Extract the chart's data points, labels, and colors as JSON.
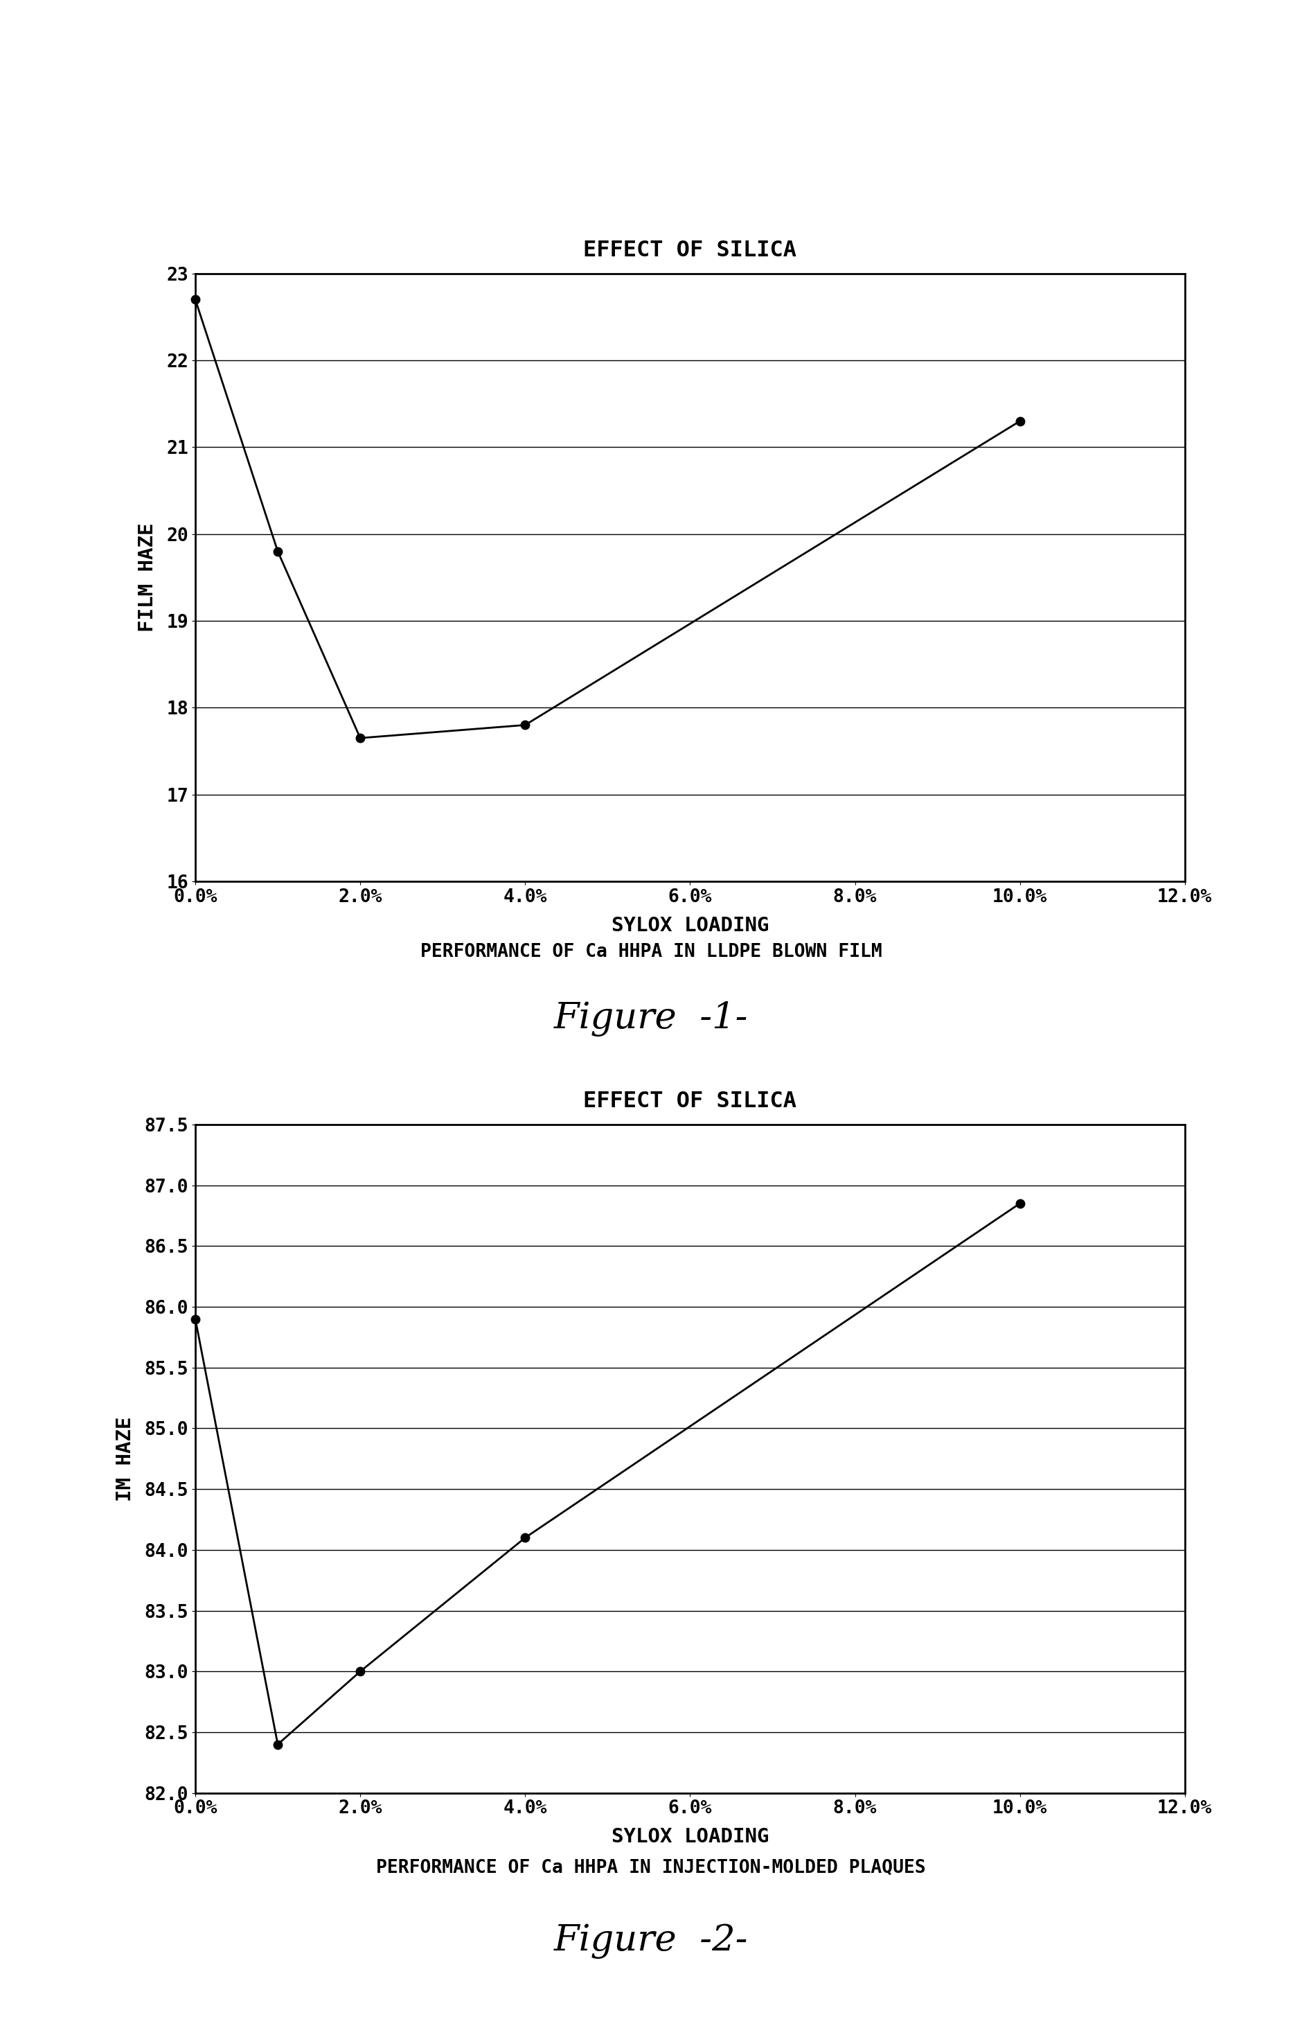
{
  "fig1": {
    "title": "EFFECT OF SILICA",
    "subtitle": "PERFORMANCE OF Ca HHPA IN LLDPE BLOWN FILM",
    "figure_label": "Figure  -1-",
    "xlabel": "SYLOX LOADING",
    "ylabel": "FILM HAZE",
    "x": [
      0.0,
      1.0,
      2.0,
      4.0,
      10.0
    ],
    "y": [
      22.7,
      19.8,
      17.65,
      17.8,
      21.3
    ],
    "ylim": [
      16,
      23
    ],
    "yticks": [
      16,
      17,
      18,
      19,
      20,
      21,
      22,
      23
    ],
    "xlim": [
      0,
      12
    ],
    "xticks": [
      0,
      2,
      4,
      6,
      8,
      10,
      12
    ],
    "xtick_labels": [
      "0.0%",
      "2.0%",
      "4.0%",
      "6.0%",
      "8.0%",
      "10.0%",
      "12.0%"
    ]
  },
  "fig2": {
    "title": "EFFECT OF SILICA",
    "subtitle": "PERFORMANCE OF Ca HHPA IN INJECTION-MOLDED PLAQUES",
    "figure_label": "Figure  -2-",
    "xlabel": "SYLOX LOADING",
    "ylabel": "IM HAZE",
    "x": [
      0.0,
      1.0,
      2.0,
      4.0,
      10.0
    ],
    "y": [
      85.9,
      82.4,
      83.0,
      84.1,
      86.85
    ],
    "ylim": [
      82.0,
      87.5
    ],
    "yticks": [
      82.0,
      82.5,
      83.0,
      83.5,
      84.0,
      84.5,
      85.0,
      85.5,
      86.0,
      86.5,
      87.0,
      87.5
    ],
    "xlim": [
      0,
      12
    ],
    "xticks": [
      0,
      2,
      4,
      6,
      8,
      10,
      12
    ],
    "xtick_labels": [
      "0.0%",
      "2.0%",
      "4.0%",
      "6.0%",
      "8.0%",
      "10.0%",
      "12.0%"
    ]
  },
  "background_color": "#ffffff",
  "line_color": "#000000",
  "marker_color": "#000000",
  "grid_color": "#000000",
  "text_color": "#000000"
}
